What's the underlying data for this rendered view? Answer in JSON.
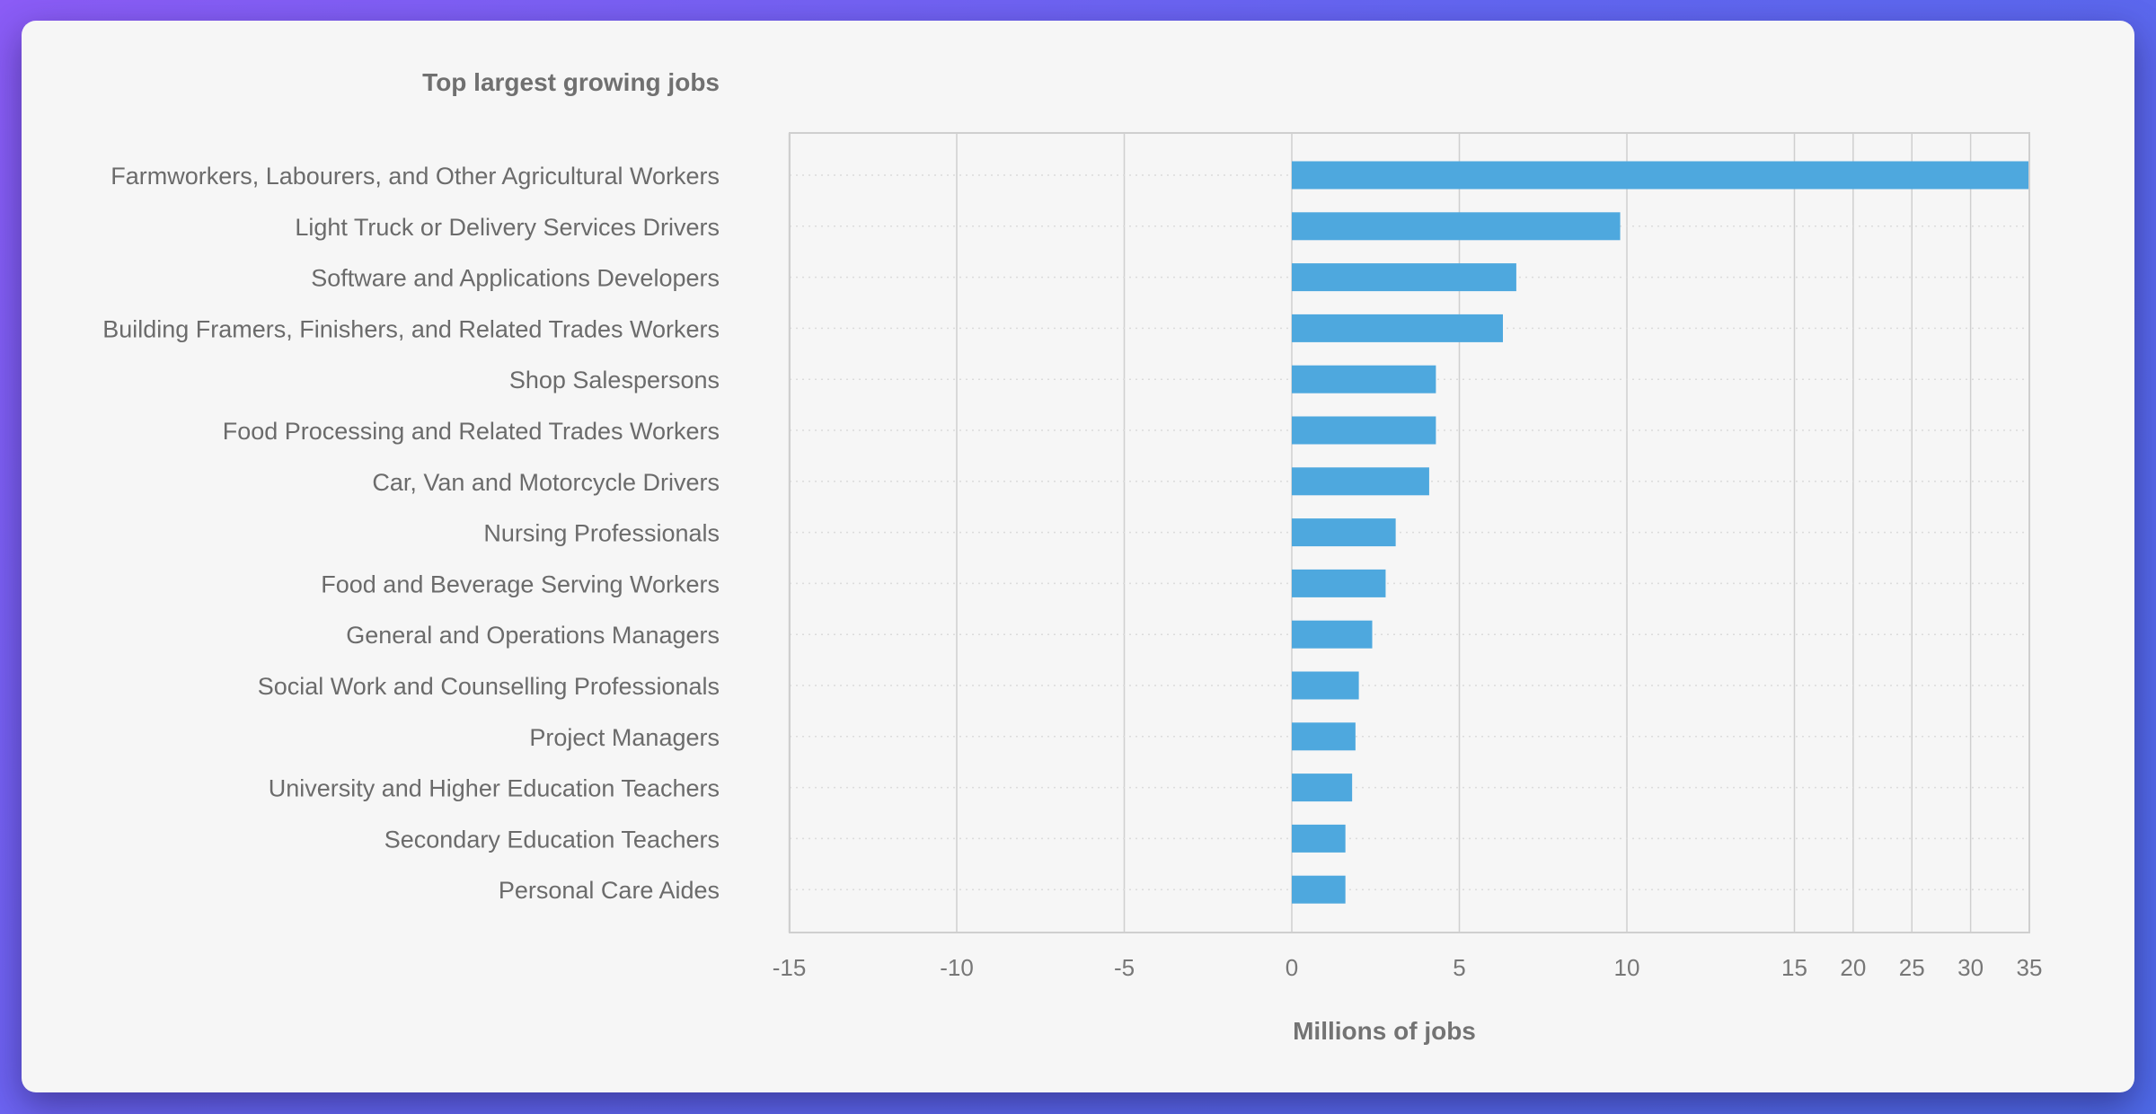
{
  "chart_data": {
    "type": "bar",
    "orientation": "horizontal",
    "title": "Top largest growing jobs",
    "xlabel": "Millions of jobs",
    "ylabel": "",
    "categories": [
      "Farmworkers, Labourers, and Other Agricultural Workers",
      "Light Truck or Delivery Services Drivers",
      "Software and Applications Developers",
      "Building Framers, Finishers, and Related Trades Workers",
      "Shop Salespersons",
      "Food Processing and Related Trades Workers",
      "Car, Van and Motorcycle Drivers",
      "Nursing Professionals",
      "Food and Beverage Serving Workers",
      "General and Operations Managers",
      "Social Work and Counselling Professionals",
      "Project Managers",
      "University and Higher Education Teachers",
      "Secondary Education Teachers",
      "Personal Care Aides"
    ],
    "values": [
      35,
      9.8,
      6.7,
      6.3,
      4.3,
      4.3,
      4.1,
      3.1,
      2.8,
      2.4,
      2.0,
      1.9,
      1.8,
      1.6,
      1.6
    ],
    "xticks": [
      -15,
      -10,
      -5,
      0,
      5,
      10,
      15,
      20,
      25,
      30,
      35
    ],
    "xlim": [
      -15,
      35
    ],
    "axis_scale": "piecewise: linear from -15 to 15, compressed from 15 to 35",
    "grid": {
      "vertical": true,
      "horizontal": "dotted"
    },
    "bar_color": "#4ea8de"
  }
}
